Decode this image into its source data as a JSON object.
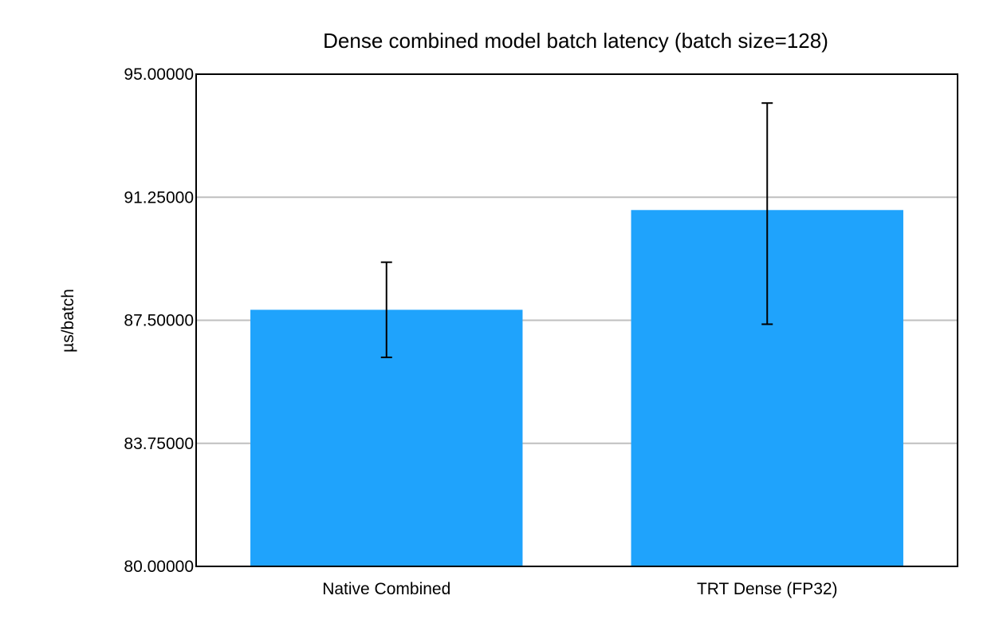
{
  "chart_data": {
    "type": "bar",
    "title": "Dense combined model batch latency (batch size=128)",
    "xlabel": "",
    "ylabel": "µs/batch",
    "categories": [
      "Native Combined",
      "TRT Dense (FP32)"
    ],
    "series": [
      {
        "values": [
          87.82,
          90.86
        ],
        "error_low": [
          86.37,
          87.38
        ],
        "error_high": [
          89.27,
          94.12
        ]
      }
    ],
    "ylim": [
      80,
      95
    ],
    "yticks": [
      "80.00000",
      "83.75000",
      "87.50000",
      "91.25000",
      "95.00000"
    ],
    "ytick_values": [
      80,
      83.75,
      87.5,
      91.25,
      95
    ],
    "grid": true,
    "bar_color": "#1fa3fc",
    "grid_color": "#bfbfbf"
  }
}
